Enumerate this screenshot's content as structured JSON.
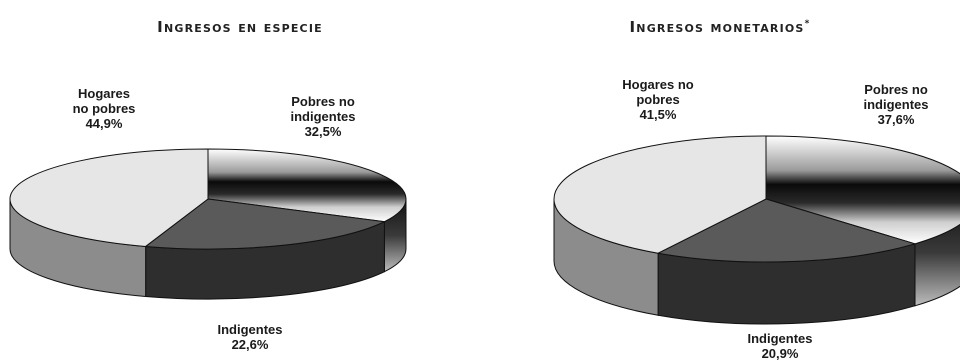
{
  "chart_data": [
    {
      "type": "pie",
      "title": "Ingresos en especie",
      "title_mark": "",
      "slices": [
        {
          "name": "Pobres no indigentes",
          "value": 32.5,
          "label_lines": [
            "Pobres no",
            "indigentes"
          ],
          "value_label": "32,5%"
        },
        {
          "name": "Indigentes",
          "value": 22.6,
          "label_lines": [
            "Indigentes"
          ],
          "value_label": "22,6%"
        },
        {
          "name": "Hogares no pobres",
          "value": 44.9,
          "label_lines": [
            "Hogares",
            "no pobres"
          ],
          "value_label": "44,9%"
        }
      ]
    },
    {
      "type": "pie",
      "title": "Ingresos monetarios",
      "title_mark": "*",
      "slices": [
        {
          "name": "Pobres no indigentes",
          "value": 37.6,
          "label_lines": [
            "Pobres no",
            "indigentes"
          ],
          "value_label": "37,6%"
        },
        {
          "name": "Indigentes",
          "value": 20.9,
          "label_lines": [
            "Indigentes"
          ],
          "value_label": "20,9%"
        },
        {
          "name": "Hogares no pobres",
          "value": 41.5,
          "label_lines": [
            "Hogares no",
            "pobres"
          ],
          "value_label": "41,5%"
        }
      ]
    }
  ]
}
